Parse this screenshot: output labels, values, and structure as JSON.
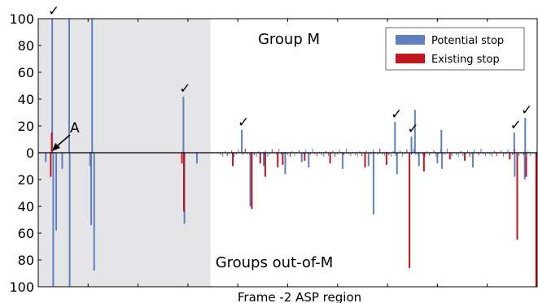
{
  "chart_data": {
    "type": "bar",
    "xlabel": "Frame -2 ASP region",
    "ylim_top": [
      0,
      100
    ],
    "ylim_bottom": [
      0,
      100
    ],
    "yticks_top": [
      "0",
      "20",
      "40",
      "60",
      "80",
      "100"
    ],
    "yticks_bottom": [
      "20",
      "40",
      "60",
      "80",
      "100"
    ],
    "upper_label": "Group M",
    "lower_label": "Groups out-of-M",
    "annotation": "A",
    "check_mark": "✓",
    "shaded_region_end_fraction": 0.345,
    "legend_position": "top-right",
    "colors": {
      "potential": "#5f7fbf",
      "existing": "#c0161c",
      "shade": "#e5e5e8"
    },
    "series": [
      {
        "name": "Potential stop",
        "up": [
          {
            "x": 0.028,
            "v": 100
          },
          {
            "x": 0.062,
            "v": 100
          },
          {
            "x": 0.108,
            "v": 100
          },
          {
            "x": 0.291,
            "v": 42
          },
          {
            "x": 0.408,
            "v": 17
          },
          {
            "x": 0.715,
            "v": 23
          },
          {
            "x": 0.755,
            "v": 32
          },
          {
            "x": 0.748,
            "v": 12
          },
          {
            "x": 0.808,
            "v": 17
          },
          {
            "x": 0.954,
            "v": 15
          },
          {
            "x": 0.976,
            "v": 26
          }
        ],
        "down": [
          {
            "x": 0.015,
            "v": 7
          },
          {
            "x": 0.03,
            "v": 100
          },
          {
            "x": 0.036,
            "v": 58
          },
          {
            "x": 0.048,
            "v": 12
          },
          {
            "x": 0.063,
            "v": 100
          },
          {
            "x": 0.104,
            "v": 10
          },
          {
            "x": 0.106,
            "v": 54
          },
          {
            "x": 0.112,
            "v": 88
          },
          {
            "x": 0.293,
            "v": 53
          },
          {
            "x": 0.318,
            "v": 8
          },
          {
            "x": 0.425,
            "v": 40
          },
          {
            "x": 0.452,
            "v": 10
          },
          {
            "x": 0.495,
            "v": 16
          },
          {
            "x": 0.528,
            "v": 7
          },
          {
            "x": 0.542,
            "v": 11
          },
          {
            "x": 0.61,
            "v": 12
          },
          {
            "x": 0.662,
            "v": 10
          },
          {
            "x": 0.672,
            "v": 46
          },
          {
            "x": 0.719,
            "v": 16
          },
          {
            "x": 0.763,
            "v": 10
          },
          {
            "x": 0.8,
            "v": 8
          },
          {
            "x": 0.809,
            "v": 12
          },
          {
            "x": 0.871,
            "v": 11
          },
          {
            "x": 0.955,
            "v": 18
          },
          {
            "x": 0.975,
            "v": 20
          }
        ]
      },
      {
        "name": "Existing stop",
        "up": [
          {
            "x": 0.027,
            "v": 15
          }
        ],
        "down": [
          {
            "x": 0.025,
            "v": 18
          },
          {
            "x": 0.288,
            "v": 8
          },
          {
            "x": 0.292,
            "v": 44
          },
          {
            "x": 0.39,
            "v": 10
          },
          {
            "x": 0.428,
            "v": 42
          },
          {
            "x": 0.445,
            "v": 8
          },
          {
            "x": 0.455,
            "v": 18
          },
          {
            "x": 0.48,
            "v": 11
          },
          {
            "x": 0.49,
            "v": 9
          },
          {
            "x": 0.534,
            "v": 6
          },
          {
            "x": 0.585,
            "v": 8
          },
          {
            "x": 0.655,
            "v": 11
          },
          {
            "x": 0.698,
            "v": 9
          },
          {
            "x": 0.744,
            "v": 86
          },
          {
            "x": 0.773,
            "v": 14
          },
          {
            "x": 0.825,
            "v": 5
          },
          {
            "x": 0.855,
            "v": 6
          },
          {
            "x": 0.945,
            "v": 5
          },
          {
            "x": 0.96,
            "v": 65
          },
          {
            "x": 0.978,
            "v": 18
          },
          {
            "x": 0.998,
            "v": 100
          }
        ]
      }
    ]
  }
}
